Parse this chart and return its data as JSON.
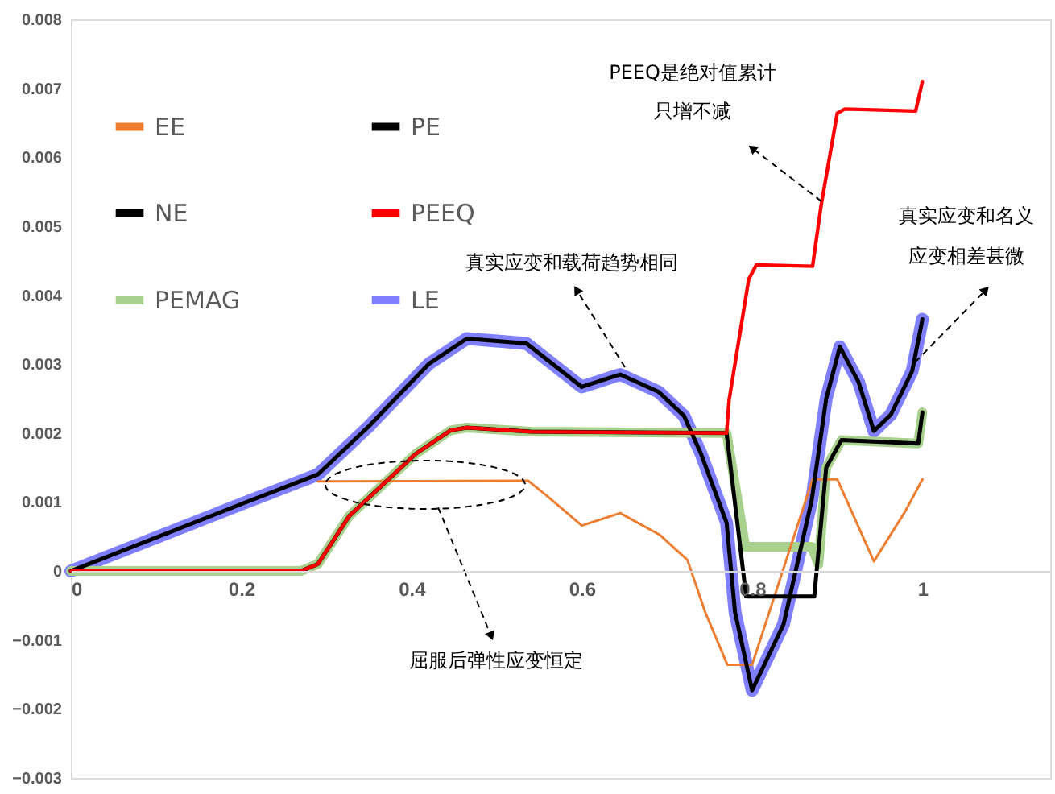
{
  "chart_data": {
    "type": "line",
    "xlim": [
      0,
      1.15
    ],
    "xticks": [
      0,
      0.2,
      0.4,
      0.6,
      0.8,
      1
    ],
    "ylim": [
      -0.003,
      0.008
    ],
    "yticks": [
      -0.003,
      -0.002,
      -0.001,
      0,
      0.001,
      0.002,
      0.003,
      0.004,
      0.005,
      0.006,
      0.007,
      0.008
    ],
    "grid": false,
    "legend": "top left",
    "line_style": "solid",
    "marker": "none",
    "series": [
      {
        "name": "EE",
        "color": "#ed7d31",
        "x": [
          0.29,
          0.537,
          0.56,
          0.6,
          0.645,
          0.692,
          0.724,
          0.745,
          0.771,
          0.8,
          0.871,
          0.9,
          0.943,
          0.98,
          1.0
        ],
        "values": [
          0.0013,
          0.00131,
          0.00108,
          0.00066,
          0.00084,
          0.00052,
          0.00016,
          -0.0006,
          -0.00136,
          -0.00136,
          0.00133,
          0.00133,
          0.00014,
          0.00087,
          0.00133
        ]
      },
      {
        "name": "PE",
        "color": "#000000",
        "x": [
          0,
          0.27,
          0.29,
          0.327,
          0.405,
          0.446,
          0.465,
          0.54,
          0.77,
          0.793,
          0.873,
          0.887,
          0.905,
          0.995,
          1.0
        ],
        "values": [
          0,
          0,
          0.0001,
          0.0008,
          0.0017,
          0.00204,
          0.00208,
          0.00202,
          0.002,
          -0.00037,
          -0.00037,
          0.0015,
          0.0019,
          0.00185,
          0.0023
        ]
      },
      {
        "name": "NE",
        "color": "#000000",
        "x": [
          0,
          0.2,
          0.29,
          0.35,
          0.42,
          0.465,
          0.535,
          0.6,
          0.645,
          0.69,
          0.72,
          0.74,
          0.77,
          0.78,
          0.8,
          0.837,
          0.87,
          0.887,
          0.903,
          0.925,
          0.943,
          0.963,
          0.988,
          1.0
        ],
        "values": [
          0,
          0.00097,
          0.0014,
          0.0021,
          0.003,
          0.00337,
          0.0033,
          0.00267,
          0.00285,
          0.0026,
          0.00225,
          0.0017,
          0.0007,
          -0.0006,
          -0.00173,
          -0.00077,
          0.00103,
          0.0025,
          0.00325,
          0.00274,
          0.00203,
          0.00227,
          0.0029,
          0.00365
        ]
      },
      {
        "name": "PEEQ",
        "color": "#ff0000",
        "x": [
          0,
          0.27,
          0.29,
          0.327,
          0.405,
          0.446,
          0.465,
          0.54,
          0.77,
          0.773,
          0.796,
          0.805,
          0.871,
          0.881,
          0.9,
          0.909,
          0.992,
          1.0
        ],
        "values": [
          0,
          0,
          0.0001,
          0.0008,
          0.0017,
          0.00204,
          0.00208,
          0.00202,
          0.002,
          0.00248,
          0.00423,
          0.00444,
          0.00442,
          0.0053,
          0.00664,
          0.0067,
          0.00667,
          0.0071
        ]
      },
      {
        "name": "PEMAG",
        "color": "#a9d18e",
        "x": [
          0,
          0.27,
          0.29,
          0.327,
          0.405,
          0.446,
          0.465,
          0.54,
          0.77,
          0.792,
          0.87,
          0.878,
          0.887,
          0.905,
          0.995,
          1.0
        ],
        "values": [
          0,
          0,
          0.0001,
          0.0008,
          0.0017,
          0.00204,
          0.00208,
          0.00202,
          0.002,
          0.00035,
          0.00035,
          0.0001,
          0.0015,
          0.0019,
          0.00185,
          0.0023
        ]
      },
      {
        "name": "LE",
        "color": "#7f7fff",
        "x": [
          0,
          0.2,
          0.29,
          0.35,
          0.42,
          0.465,
          0.535,
          0.6,
          0.645,
          0.69,
          0.72,
          0.74,
          0.77,
          0.78,
          0.8,
          0.837,
          0.87,
          0.887,
          0.903,
          0.925,
          0.943,
          0.963,
          0.988,
          1.0
        ],
        "values": [
          0,
          0.00097,
          0.0014,
          0.0021,
          0.003,
          0.00337,
          0.0033,
          0.00267,
          0.00285,
          0.0026,
          0.00225,
          0.0017,
          0.0007,
          -0.0006,
          -0.00173,
          -0.00077,
          0.00103,
          0.0025,
          0.00325,
          0.00274,
          0.00203,
          0.00227,
          0.0029,
          0.00365
        ]
      }
    ],
    "annotations": [
      "PEEQ是绝对值累计",
      "只增不减",
      "真实应变和载荷趋势相同",
      "真实应变和名义",
      "应变相差甚微",
      "屈服后弹性应变恒定"
    ]
  }
}
